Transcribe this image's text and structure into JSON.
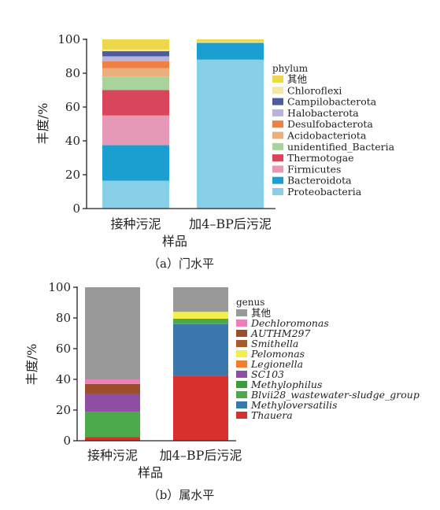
{
  "chart_data": [
    {
      "type": "bar",
      "stacked": true,
      "caption": "（a）门水平",
      "xlabel": "样品",
      "ylabel": "丰度/%",
      "ylim": [
        0,
        100
      ],
      "yticks": [
        0,
        20,
        40,
        60,
        80,
        100
      ],
      "categories": [
        "接种污泥",
        "加4–BP后污泥"
      ],
      "legend_title": "phylum",
      "legend_position": "right",
      "series": [
        {
          "name": "Proteobacteria",
          "color": "#86cfe6",
          "italic": false,
          "values": [
            16.5,
            88.0
          ]
        },
        {
          "name": "Bacteroidota",
          "color": "#1a9fd0",
          "italic": false,
          "values": [
            21.0,
            10.0
          ]
        },
        {
          "name": "Firmicutes",
          "color": "#e699b7",
          "italic": false,
          "values": [
            17.5,
            0.0
          ]
        },
        {
          "name": "Thermotogae",
          "color": "#d9455a",
          "italic": false,
          "values": [
            15.0,
            0.0
          ]
        },
        {
          "name": "unidentified_Bacteria",
          "color": "#a9d39a",
          "italic": false,
          "values": [
            8.0,
            0.0
          ]
        },
        {
          "name": "Acidobacteriota",
          "color": "#e9b07e",
          "italic": false,
          "values": [
            5.0,
            0.0
          ]
        },
        {
          "name": "Desulfobacterota",
          "color": "#ee8043",
          "italic": false,
          "values": [
            4.0,
            0.0
          ]
        },
        {
          "name": "Halobacterota",
          "color": "#b9b2dc",
          "italic": false,
          "values": [
            3.0,
            0.0
          ]
        },
        {
          "name": "Campilobacterota",
          "color": "#4d5c9c",
          "italic": false,
          "values": [
            3.0,
            0.0
          ]
        },
        {
          "name": "Chloroflexi",
          "color": "#f5e5a6",
          "italic": false,
          "values": [
            1.0,
            0.5
          ]
        },
        {
          "name": "其他",
          "color": "#ecd84a",
          "italic": false,
          "values": [
            6.0,
            1.5
          ]
        }
      ]
    },
    {
      "type": "bar",
      "stacked": true,
      "caption": "（b）属水平",
      "xlabel": "样品",
      "ylabel": "丰度/%",
      "ylim": [
        0,
        100
      ],
      "yticks": [
        0,
        20,
        40,
        60,
        80,
        100
      ],
      "categories": [
        "接种污泥",
        "加4–BP后污泥"
      ],
      "legend_title": "genus",
      "legend_position": "right",
      "series": [
        {
          "name": "Thauera",
          "color": "#d8302c",
          "italic": true,
          "values": [
            2.5,
            42.5
          ]
        },
        {
          "name": "Methyloversatilis",
          "color": "#3a77ad",
          "italic": true,
          "values": [
            0.0,
            33.5
          ]
        },
        {
          "name": "Blvii28_wastewater-sludge_group",
          "color": "#4daa4a",
          "italic": true,
          "values": [
            16.5,
            3.5
          ]
        },
        {
          "name": "Methylophilus",
          "color": "#3f9a3f",
          "italic": true,
          "values": [
            0.0,
            0.0
          ]
        },
        {
          "name": "SC103",
          "color": "#8e4ea3",
          "italic": true,
          "values": [
            11.5,
            0.0
          ]
        },
        {
          "name": "Legionella",
          "color": "#f07e2e",
          "italic": true,
          "values": [
            0.0,
            0.0
          ]
        },
        {
          "name": "Pelomonas",
          "color": "#f3ef48",
          "italic": true,
          "values": [
            0.0,
            4.5
          ]
        },
        {
          "name": "Smithella",
          "color": "#a85a2c",
          "italic": true,
          "values": [
            0.0,
            0.0
          ]
        },
        {
          "name": "AUTHM297",
          "color": "#9c4d2a",
          "italic": true,
          "values": [
            6.5,
            0.0
          ]
        },
        {
          "name": "Dechloromonas",
          "color": "#ea7fba",
          "italic": true,
          "values": [
            3.0,
            0.0
          ]
        },
        {
          "name": "其他",
          "color": "#999999",
          "italic": false,
          "values": [
            60.0,
            16.0
          ]
        }
      ]
    }
  ]
}
